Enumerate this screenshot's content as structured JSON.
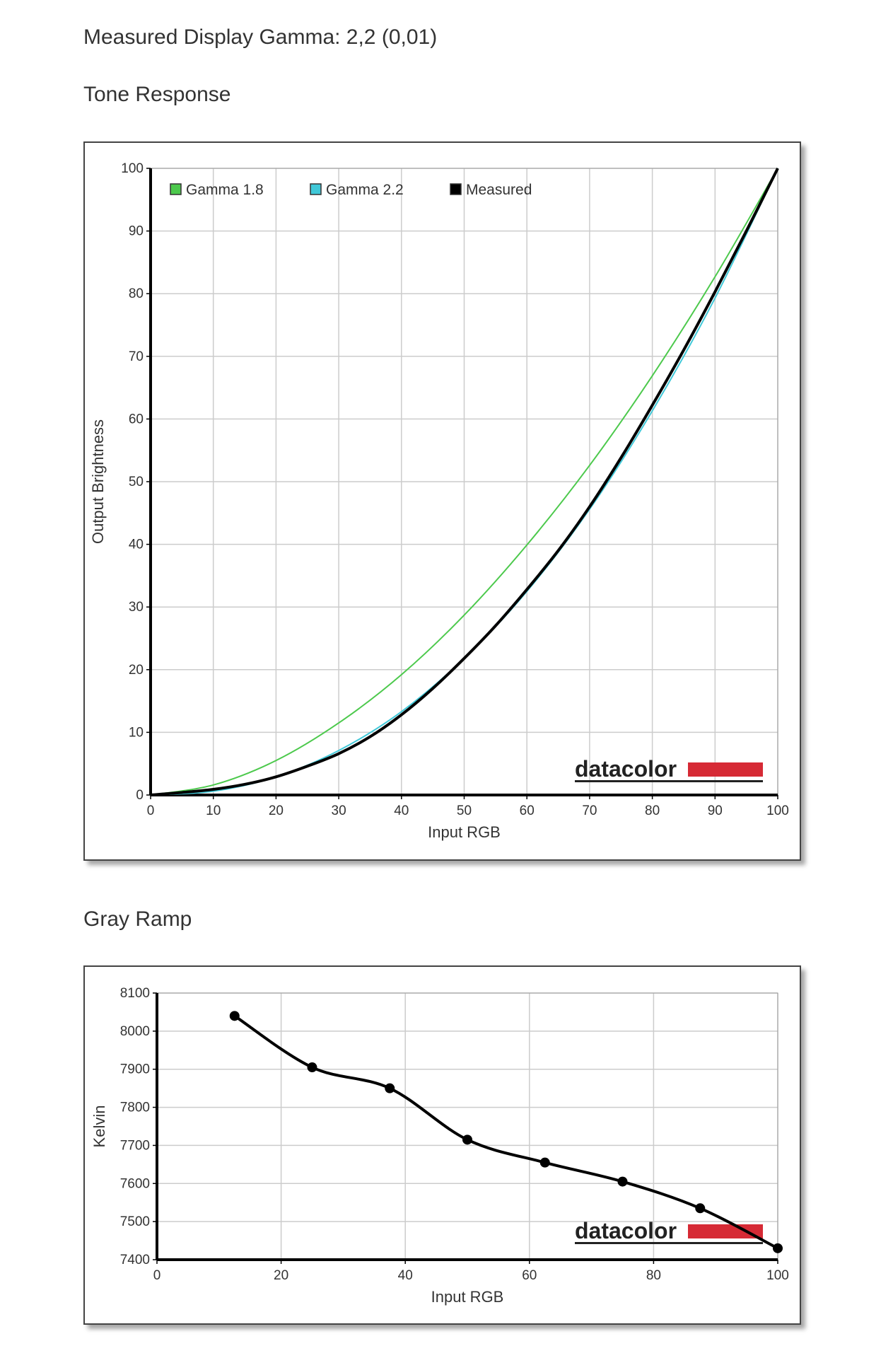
{
  "headings": {
    "gamma": "Measured Display Gamma: 2,2 (0,01)",
    "tone": "Tone Response",
    "gray": "Gray Ramp"
  },
  "colors": {
    "gamma18": "#4cc94c",
    "gamma22": "#40c8d8",
    "measured": "#000000",
    "grid": "#cccccc",
    "brand_bar": "#d62a35"
  },
  "chart_data": [
    {
      "type": "line",
      "xlabel": "Input RGB",
      "ylabel": "Output Brightness",
      "xlim": [
        0,
        100
      ],
      "ylim": [
        0,
        100
      ],
      "xticks": [
        0,
        10,
        20,
        30,
        40,
        50,
        60,
        70,
        80,
        90,
        100
      ],
      "yticks": [
        0,
        10,
        20,
        30,
        40,
        50,
        60,
        70,
        80,
        90,
        100
      ],
      "grid": true,
      "legend_position": "top-left",
      "logo": "datacolor",
      "series": [
        {
          "name": "Gamma 1.8",
          "color": "#4cc94c",
          "x": [
            0,
            10,
            20,
            30,
            40,
            50,
            60,
            70,
            80,
            90,
            100
          ],
          "y": [
            0,
            1.6,
            5.5,
            11.5,
            19.2,
            28.7,
            39.9,
            52.6,
            66.9,
            82.7,
            100
          ]
        },
        {
          "name": "Gamma 2.2",
          "color": "#40c8d8",
          "x": [
            0,
            10,
            20,
            30,
            40,
            50,
            60,
            70,
            80,
            90,
            100
          ],
          "y": [
            0,
            0.6,
            2.9,
            7.1,
            13.3,
            21.8,
            32.5,
            45.6,
            61.3,
            79.3,
            100
          ]
        },
        {
          "name": "Measured",
          "color": "#000000",
          "x": [
            0,
            5,
            10,
            15,
            20,
            25,
            30,
            35,
            40,
            45,
            50,
            55,
            60,
            65,
            70,
            75,
            80,
            85,
            90,
            95,
            100
          ],
          "y": [
            0,
            0.4,
            0.9,
            1.7,
            2.9,
            4.6,
            6.6,
            9.3,
            12.8,
            17.0,
            21.8,
            27.0,
            32.8,
            39.0,
            46.0,
            53.8,
            62.2,
            71.0,
            80.3,
            90.0,
            100
          ]
        }
      ]
    },
    {
      "type": "line",
      "xlabel": "Input RGB",
      "ylabel": "Kelvin",
      "xlim": [
        0,
        100
      ],
      "ylim": [
        7400,
        8100
      ],
      "xticks": [
        0,
        20,
        40,
        60,
        80,
        100
      ],
      "yticks": [
        7400,
        7500,
        7600,
        7700,
        7800,
        7900,
        8000,
        8100
      ],
      "grid": true,
      "logo": "datacolor",
      "series": [
        {
          "color": "#000000",
          "x": [
            12.5,
            25,
            37.5,
            50,
            62.5,
            75,
            87.5,
            100
          ],
          "y": [
            8040,
            7905,
            7850,
            7715,
            7655,
            7605,
            7535,
            7430
          ]
        }
      ]
    }
  ]
}
